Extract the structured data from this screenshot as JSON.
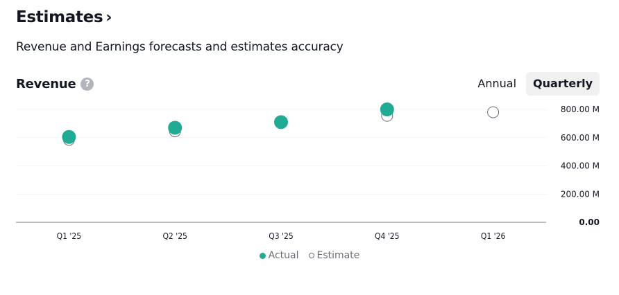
{
  "header": {
    "title": "Estimates",
    "title_chevron": "›",
    "subtitle": "Revenue and Earnings forecasts and estimates accuracy"
  },
  "section": {
    "title": "Revenue",
    "help_icon": "question-circle-icon",
    "help_glyph": "?"
  },
  "period_toggle": {
    "options": [
      {
        "label": "Annual",
        "active": false
      },
      {
        "label": "Quarterly",
        "active": true
      }
    ]
  },
  "colors": {
    "actual": "#22ab94",
    "estimate_stroke": "#6a6d78",
    "grid": "#f0f3fa",
    "axis": "#787b86"
  },
  "chart_data": {
    "type": "scatter",
    "title": "Revenue",
    "categories": [
      "Q1 '25",
      "Q2 '25",
      "Q3 '25",
      "Q4 '25",
      "Q1 '26"
    ],
    "series": [
      {
        "name": "Actual",
        "values": [
          605,
          670,
          710,
          800,
          null
        ]
      },
      {
        "name": "Estimate",
        "values": [
          585,
          645,
          null,
          755,
          780
        ]
      }
    ],
    "units": "M",
    "ylim": [
      0,
      800
    ],
    "yticks": [
      {
        "value": 0,
        "label": "0.00"
      },
      {
        "value": 200,
        "label": "200.00 M"
      },
      {
        "value": 400,
        "label": "400.00 M"
      },
      {
        "value": 600,
        "label": "600.00 M"
      },
      {
        "value": 800,
        "label": "800.00 M"
      }
    ],
    "grid": true,
    "y_axis_position": "right",
    "legend_placement": "bottom-center",
    "legend": [
      "Actual",
      "Estimate"
    ]
  }
}
